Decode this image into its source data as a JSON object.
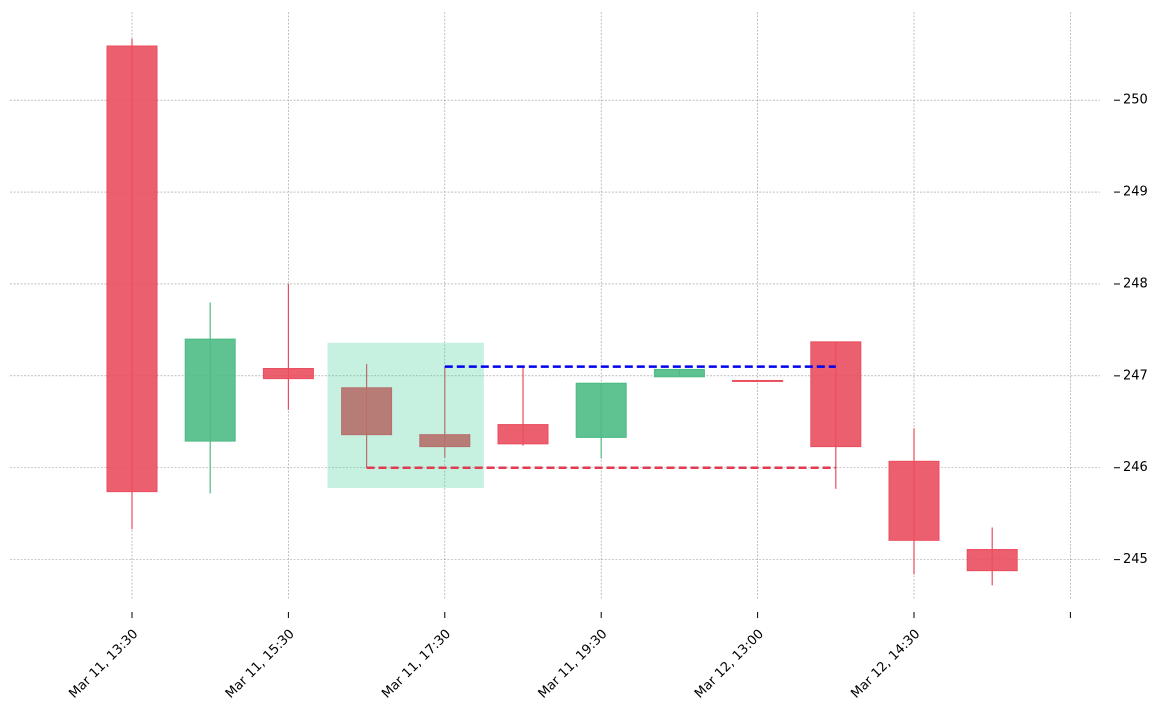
{
  "chart_data": {
    "type": "candlestick",
    "categories": [
      "Mar 11, 13:30",
      null,
      "Mar 11, 15:30",
      null,
      "Mar 11, 17:30",
      null,
      "Mar 11, 19:30",
      null,
      "Mar 12, 13:00",
      null,
      "Mar 12, 14:30",
      null
    ],
    "open": [
      250.59,
      246.29,
      247.08,
      246.87,
      246.36,
      246.47,
      246.33,
      246.99,
      246.95,
      247.37,
      246.07,
      245.11
    ],
    "high": [
      250.67,
      247.8,
      248.0,
      247.13,
      247.1,
      247.1,
      246.92,
      247.07,
      246.95,
      247.37,
      246.43,
      245.35
    ],
    "low": [
      245.33,
      245.72,
      246.63,
      246.0,
      246.11,
      246.24,
      246.1,
      246.99,
      246.94,
      245.77,
      244.84,
      244.72
    ],
    "close": [
      245.74,
      247.4,
      246.97,
      246.36,
      246.23,
      246.26,
      246.92,
      247.07,
      246.94,
      246.23,
      245.21,
      244.88
    ],
    "up_color": "#4dbb85",
    "down_color": "#ea4e5e",
    "ylim": [
      244.43,
      250.96
    ],
    "yticks": [
      245,
      246,
      247,
      248,
      249,
      250
    ],
    "grid": true,
    "region": {
      "x": [
        2.5,
        4.5
      ],
      "y": [
        245.78,
        247.36
      ],
      "color": "#2ecc8f"
    },
    "hlines": [
      {
        "y": 247.1,
        "x": [
          4,
          9
        ],
        "color": "#0000ee"
      },
      {
        "y": 246.0,
        "x": [
          3,
          9
        ],
        "color": "#e23a4e"
      }
    ]
  }
}
